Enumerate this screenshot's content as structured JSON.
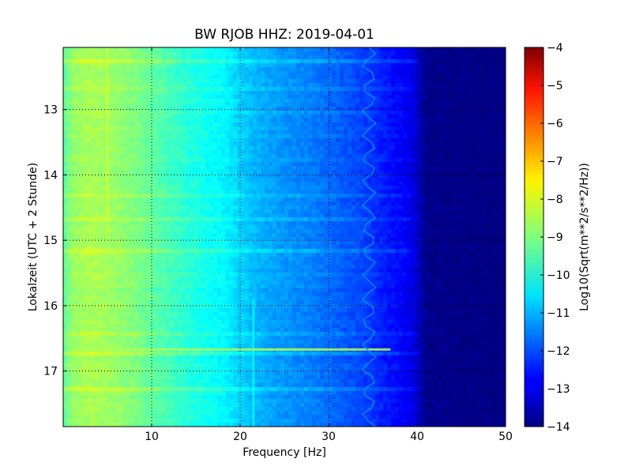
{
  "chart_data": {
    "type": "heatmap",
    "title": "BW RJOB HHZ: 2019-04-01",
    "xlabel": "Frequency [Hz]",
    "ylabel": "Lokalzeit (UTC + 2 Stunde)",
    "xlim": [
      0,
      50
    ],
    "ylim": [
      12.05,
      17.85
    ],
    "y_inverted": true,
    "x_ticks": [
      10,
      20,
      30,
      40,
      50
    ],
    "y_ticks": [
      13,
      14,
      15,
      16,
      17
    ],
    "grid": true,
    "colorscale": "jet",
    "colorbar": {
      "label": "Log10(Sqrt(m**2/s**2/Hz))",
      "range": [
        -14,
        -4
      ],
      "ticks": [
        -4,
        -5,
        -6,
        -7,
        -8,
        -9,
        -10,
        -11,
        -12,
        -13,
        -14
      ]
    },
    "spectrum_profile": {
      "frequency_hz": [
        0,
        1,
        3,
        5,
        8,
        10,
        12,
        15,
        18,
        20,
        22,
        25,
        28,
        30,
        33,
        35,
        37,
        39,
        40,
        41,
        50
      ],
      "log_psd": [
        -9.4,
        -8.8,
        -8.6,
        -8.7,
        -9.0,
        -9.3,
        -9.6,
        -10.0,
        -10.3,
        -10.7,
        -11.0,
        -11.3,
        -11.5,
        -11.7,
        -12.0,
        -12.3,
        -12.6,
        -12.9,
        -13.2,
        -13.9,
        -14.0
      ]
    },
    "features": [
      {
        "name": "5 Hz line",
        "frequency_hz": 5.0,
        "time_range": [
          12.05,
          14.95
        ],
        "log_psd": -8.2
      },
      {
        "name": "21.5 Hz line",
        "frequency_hz": 21.5,
        "time_range": [
          15.9,
          17.85
        ],
        "log_psd": -10.2
      },
      {
        "name": "broadband band",
        "time": 16.67,
        "frequency_range": [
          1,
          37
        ],
        "log_psd": -8.5
      },
      {
        "name": "34.5 Hz wandering line",
        "frequency_range": [
          33.8,
          35.3
        ],
        "time_range": [
          12.05,
          17.85
        ],
        "log_psd": -11.3
      }
    ]
  }
}
